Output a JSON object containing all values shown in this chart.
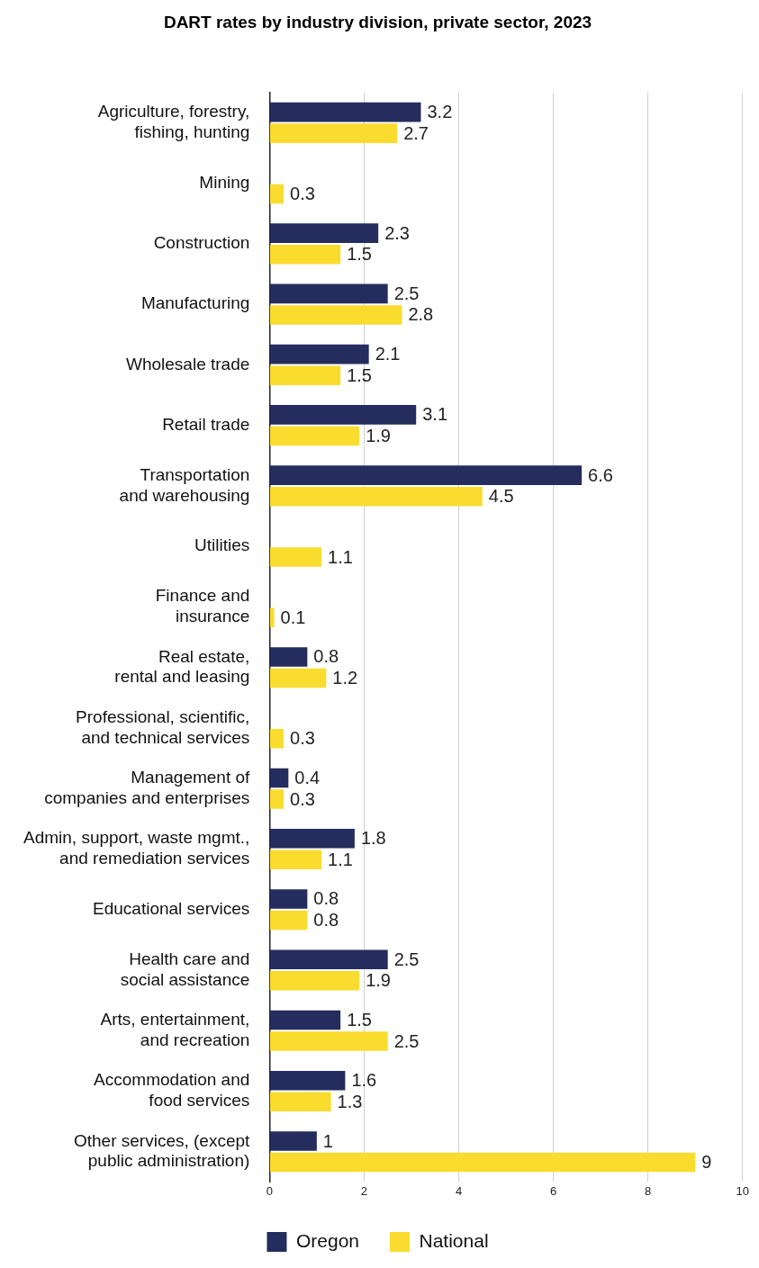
{
  "chart_data": {
    "type": "bar",
    "orientation": "horizontal",
    "title": "DART rates by industry division, private sector, 2023",
    "categories": [
      "Agriculture, forestry,\nfishing, hunting",
      "Mining",
      "Construction",
      "Manufacturing",
      "Wholesale trade",
      "Retail trade",
      "Transportation\nand warehousing",
      "Utilities",
      "Finance and\ninsurance",
      "Real estate,\nrental and leasing",
      "Professional, scientific,\nand technical services",
      "Management of\ncompanies and enterprises",
      "Admin, support, waste mgmt.,\nand remediation services",
      "Educational services",
      "Health care and\nsocial assistance",
      "Arts, entertainment,\nand recreation",
      "Accommodation and\nfood services",
      "Other services, (except\npublic administration)"
    ],
    "series": [
      {
        "name": "Oregon",
        "color": "#252d5f",
        "values": [
          3.2,
          null,
          2.3,
          2.5,
          2.1,
          3.1,
          6.6,
          null,
          null,
          0.8,
          null,
          0.4,
          1.8,
          0.8,
          2.5,
          1.5,
          1.6,
          1
        ]
      },
      {
        "name": "National",
        "color": "#f9dc2e",
        "values": [
          2.7,
          0.3,
          1.5,
          2.8,
          1.5,
          1.9,
          4.5,
          1.1,
          0.1,
          1.2,
          0.3,
          0.3,
          1.1,
          0.8,
          1.9,
          2.5,
          1.3,
          9
        ]
      }
    ],
    "xlim": [
      0,
      10
    ],
    "xticks": [
      0,
      2,
      4,
      6,
      8,
      10
    ],
    "grid": "x",
    "legend": "bottom",
    "data_labels": true
  }
}
